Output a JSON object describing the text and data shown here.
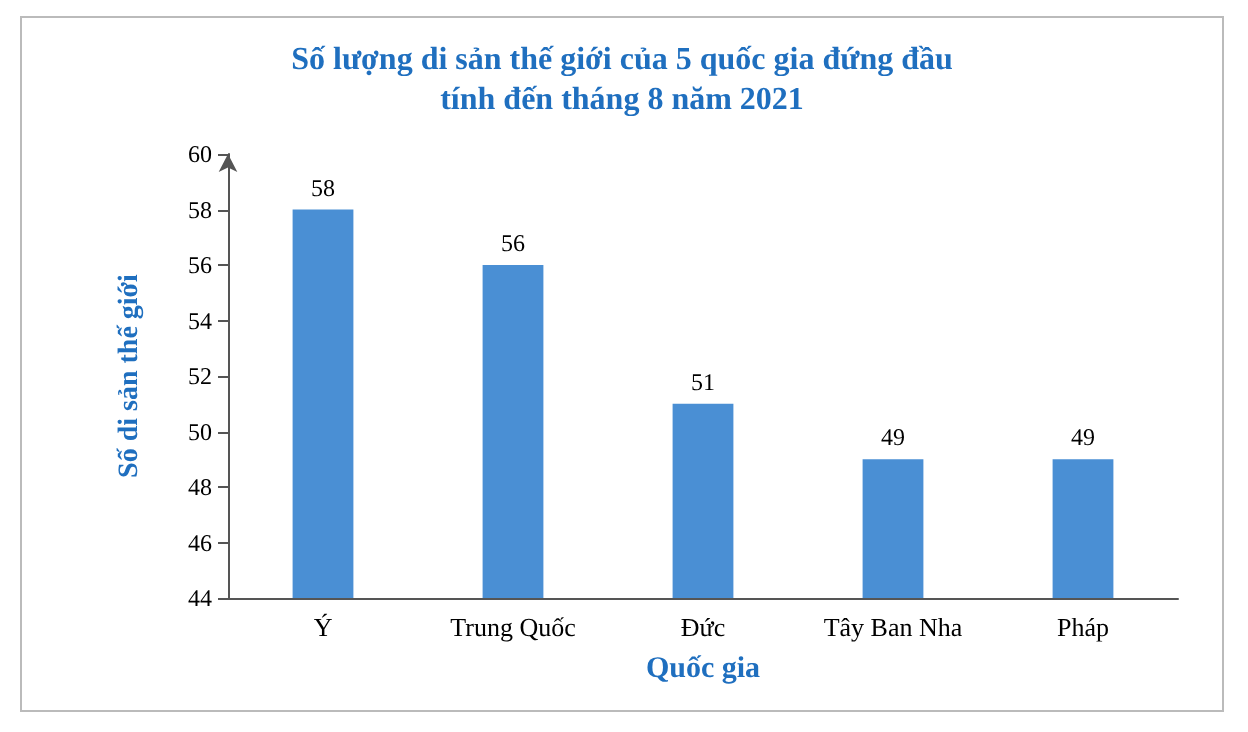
{
  "chart_data": {
    "type": "bar",
    "title": "Số lượng di sản thế giới của 5 quốc gia đứng đầu\ntính đến tháng 8 năm 2021",
    "xlabel": "Quốc gia",
    "ylabel": "Số di sản thế giới",
    "categories": [
      "Ý",
      "Trung Quốc",
      "Đức",
      "Tây Ban Nha",
      "Pháp"
    ],
    "values": [
      58,
      56,
      51,
      49,
      49
    ],
    "color": "#4a8fd4",
    "ylim": [
      44,
      60
    ],
    "yticks": [
      44,
      46,
      48,
      50,
      52,
      54,
      56,
      58,
      60
    ],
    "grid": false,
    "data_labels": true
  }
}
